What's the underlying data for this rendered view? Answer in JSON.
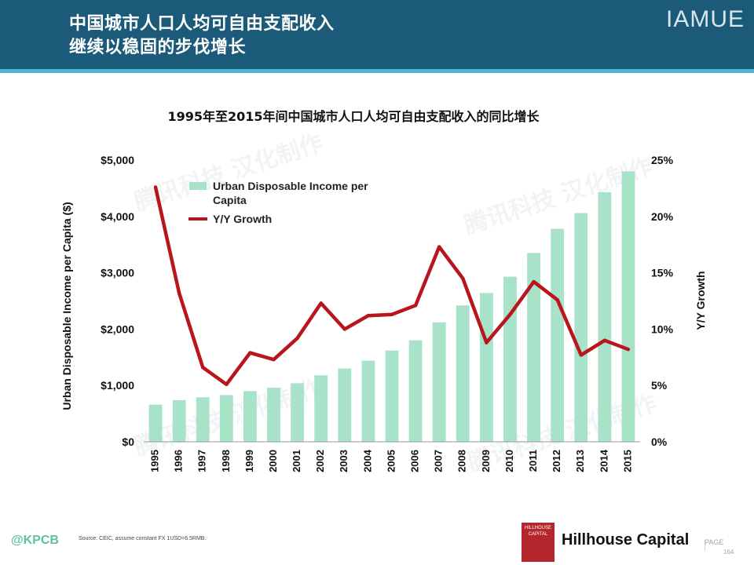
{
  "header": {
    "title_line1": "中国城市人口人均可自由支配收入",
    "title_line2": "继续以稳固的步伐增长",
    "brand": "IAMUE"
  },
  "chart_data": {
    "type": "bar",
    "title": "1995年至2015年间中国城市人口人均可自由支配收入的同比增长",
    "categories": [
      "1995",
      "1996",
      "1997",
      "1998",
      "1999",
      "2000",
      "2001",
      "2002",
      "2003",
      "2004",
      "2005",
      "2006",
      "2007",
      "2008",
      "2009",
      "2010",
      "2011",
      "2012",
      "2013",
      "2014",
      "2015"
    ],
    "series": [
      {
        "name": "Urban Disposable Income per Capita",
        "type": "bar",
        "axis": "left",
        "color": "#a8e2c9",
        "values": [
          660,
          740,
          790,
          830,
          900,
          960,
          1040,
          1180,
          1300,
          1440,
          1620,
          1800,
          2120,
          2420,
          2640,
          2930,
          3350,
          3780,
          4060,
          4430,
          4800
        ]
      },
      {
        "name": "Y/Y Growth",
        "type": "line",
        "axis": "right",
        "color": "#b8161c",
        "values": [
          22.6,
          13.2,
          6.6,
          5.1,
          7.9,
          7.3,
          9.2,
          12.3,
          10.0,
          11.2,
          11.3,
          12.1,
          17.3,
          14.5,
          8.8,
          11.3,
          14.2,
          12.6,
          7.7,
          9.0,
          8.2
        ]
      }
    ],
    "ylabel": "Urban Disposable Income per Capita ($)",
    "y2label": "Y/Y Growth",
    "ylim": [
      0,
      5000
    ],
    "y2lim": [
      0,
      25
    ],
    "yticks": [
      "$0",
      "$1,000",
      "$2,000",
      "$3,000",
      "$4,000",
      "$5,000"
    ],
    "y2ticks": [
      "0%",
      "5%",
      "10%",
      "15%",
      "20%",
      "25%"
    ],
    "grid": false,
    "legend_position": "top-left",
    "legend": [
      {
        "label_line1": "Urban Disposable Income per",
        "label_line2": "Capita"
      },
      {
        "label_line1": "Y/Y Growth",
        "label_line2": ""
      }
    ]
  },
  "footer": {
    "source": "Source: CEIC, assume constant FX 1USD=6.5RMB.",
    "kpcb": "@KPCB",
    "hillhouse_logo": "HILLHOUSE CAPITAL",
    "hillhouse_name": "Hillhouse Capital",
    "page_label": "PAGE",
    "page_number": "164"
  }
}
